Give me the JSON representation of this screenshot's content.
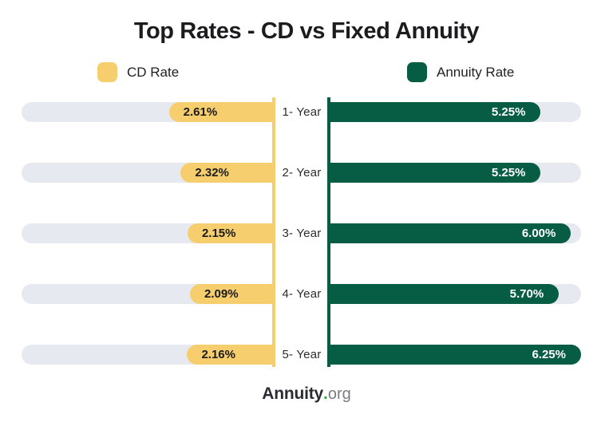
{
  "title": "Top Rates - CD vs Fixed Annuity",
  "legend": {
    "cd": {
      "label": "CD Rate",
      "color": "#F6CE6D"
    },
    "annuity": {
      "label": "Annuity Rate",
      "color": "#075D44"
    }
  },
  "chart_data": {
    "type": "bar",
    "orientation": "horizontal-diverging",
    "title": "Top Rates - CD vs Fixed Annuity",
    "categories": [
      "1- Year",
      "2- Year",
      "3- Year",
      "4- Year",
      "5- Year"
    ],
    "series": [
      {
        "name": "CD Rate",
        "side": "left",
        "color": "#F6CE6D",
        "values": [
          2.61,
          2.32,
          2.15,
          2.09,
          2.16
        ],
        "labels": [
          "2.61%",
          "2.32%",
          "2.15%",
          "2.09%",
          "2.16%"
        ]
      },
      {
        "name": "Annuity Rate",
        "side": "right",
        "color": "#075D44",
        "values": [
          5.25,
          5.25,
          6.0,
          5.7,
          6.25
        ],
        "labels": [
          "5.25%",
          "5.25%",
          "6.00%",
          "5.70%",
          "6.25%"
        ]
      }
    ],
    "axis_max": 6.25,
    "xlim": [
      0,
      6.25
    ],
    "grid": false,
    "legend_position": "top",
    "track_color": "#E7E9F1"
  },
  "footer": {
    "brand": "Annuity",
    "dot": ".",
    "tld": "org"
  }
}
